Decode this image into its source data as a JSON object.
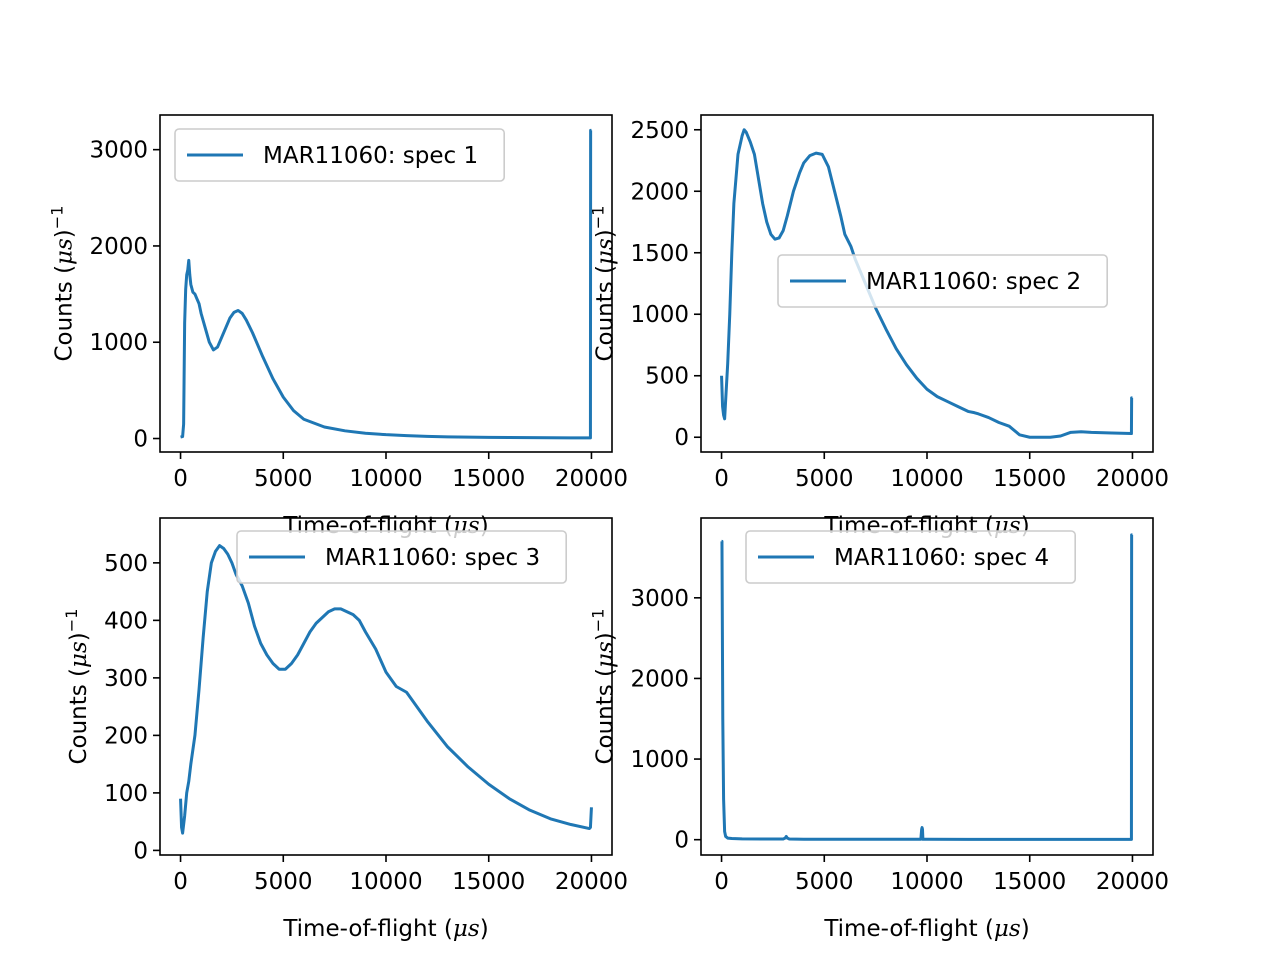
{
  "chart_data": [
    {
      "type": "line",
      "xlabel": "Time-of-flight ($\\mu s$)",
      "ylabel": "Counts ($\\mu s$)$^{-1}$",
      "xlim": [
        -1000,
        21000
      ],
      "ylim": [
        -140,
        3360
      ],
      "xticks": [
        0,
        5000,
        10000,
        15000,
        20000
      ],
      "xtick_labels": [
        "0",
        "5000",
        "10000",
        "15000",
        "20000"
      ],
      "yticks": [
        0,
        1000,
        2000,
        3000
      ],
      "ytick_labels": [
        "0",
        "1000",
        "2000",
        "3000"
      ],
      "legend": "upper left",
      "grid": false,
      "color": "#1f77b4",
      "series": [
        {
          "name": "MAR11060: spec 1",
          "x": [
            0,
            100,
            150,
            200,
            250,
            300,
            350,
            400,
            450,
            500,
            600,
            700,
            800,
            900,
            1000,
            1200,
            1400,
            1600,
            1800,
            2000,
            2200,
            2400,
            2600,
            2800,
            3000,
            3200,
            3500,
            4000,
            4500,
            5000,
            5500,
            6000,
            7000,
            8000,
            9000,
            10000,
            11000,
            12000,
            13000,
            14000,
            15000,
            16000,
            17000,
            18000,
            19000,
            19950,
            19960,
            20000
          ],
          "values": [
            15,
            20,
            150,
            1200,
            1550,
            1700,
            1750,
            1850,
            1700,
            1600,
            1520,
            1500,
            1450,
            1400,
            1300,
            1150,
            1000,
            920,
            950,
            1050,
            1150,
            1250,
            1310,
            1330,
            1300,
            1230,
            1100,
            850,
            620,
            430,
            290,
            200,
            120,
            80,
            55,
            40,
            30,
            22,
            17,
            14,
            12,
            10,
            9,
            8,
            7,
            7,
            3200,
            3200
          ]
        }
      ]
    },
    {
      "type": "line",
      "xlabel": "Time-of-flight ($\\mu s$)",
      "ylabel": "Counts ($\\mu s$)$^{-1}$",
      "xlim": [
        -1000,
        21000
      ],
      "ylim": [
        -120,
        2620
      ],
      "xticks": [
        0,
        5000,
        10000,
        15000,
        20000
      ],
      "xtick_labels": [
        "0",
        "5000",
        "10000",
        "15000",
        "20000"
      ],
      "yticks": [
        0,
        500,
        1000,
        1500,
        2000,
        2500
      ],
      "ytick_labels": [
        "0",
        "500",
        "1000",
        "1500",
        "2000",
        "2500"
      ],
      "legend": "center right",
      "grid": false,
      "color": "#1f77b4",
      "series": [
        {
          "name": "MAR11060: spec 2",
          "x": [
            0,
            50,
            100,
            150,
            200,
            300,
            400,
            500,
            600,
            800,
            1000,
            1100,
            1200,
            1400,
            1600,
            1800,
            2000,
            2200,
            2400,
            2600,
            2800,
            3000,
            3200,
            3500,
            3800,
            4000,
            4300,
            4600,
            4900,
            5200,
            5500,
            5800,
            6000,
            6300,
            6500,
            7000,
            7500,
            8000,
            8500,
            9000,
            9500,
            10000,
            10500,
            11000,
            11500,
            12000,
            12300,
            12500,
            13000,
            13500,
            14000,
            14500,
            15000,
            15500,
            16000,
            16500,
            17000,
            17500,
            18000,
            19000,
            19950,
            19960,
            20000
          ],
          "values": [
            500,
            250,
            180,
            150,
            300,
            600,
            1000,
            1500,
            1900,
            2300,
            2450,
            2500,
            2480,
            2400,
            2300,
            2100,
            1900,
            1750,
            1650,
            1610,
            1620,
            1680,
            1800,
            2000,
            2150,
            2230,
            2290,
            2310,
            2300,
            2200,
            2000,
            1800,
            1650,
            1550,
            1450,
            1250,
            1050,
            880,
            720,
            590,
            480,
            390,
            330,
            290,
            250,
            210,
            200,
            190,
            160,
            120,
            90,
            20,
            0,
            0,
            0,
            10,
            40,
            45,
            40,
            35,
            30,
            320,
            320
          ]
        }
      ]
    },
    {
      "type": "line",
      "xlabel": "Time-of-flight ($\\mu s$)",
      "ylabel": "Counts ($\\mu s$)$^{-1}$",
      "xlim": [
        -1000,
        21000
      ],
      "ylim": [
        -8,
        578
      ],
      "xticks": [
        0,
        5000,
        10000,
        15000,
        20000
      ],
      "xtick_labels": [
        "0",
        "5000",
        "10000",
        "15000",
        "20000"
      ],
      "yticks": [
        0,
        100,
        200,
        300,
        400,
        500
      ],
      "ytick_labels": [
        "0",
        "100",
        "200",
        "300",
        "400",
        "500"
      ],
      "legend": "upper right",
      "grid": false,
      "color": "#1f77b4",
      "series": [
        {
          "name": "MAR11060: spec 3",
          "x": [
            0,
            50,
            100,
            200,
            300,
            400,
            500,
            700,
            900,
            1100,
            1300,
            1500,
            1700,
            1900,
            2100,
            2300,
            2500,
            2700,
            3000,
            3300,
            3600,
            3900,
            4200,
            4500,
            4800,
            5100,
            5400,
            5700,
            6000,
            6300,
            6600,
            6900,
            7200,
            7500,
            7800,
            8100,
            8400,
            8700,
            9000,
            9500,
            10000,
            10500,
            11000,
            11500,
            12000,
            13000,
            14000,
            15000,
            16000,
            17000,
            18000,
            19000,
            19900,
            19950,
            20000
          ],
          "values": [
            90,
            40,
            30,
            60,
            100,
            120,
            150,
            200,
            280,
            370,
            450,
            500,
            520,
            530,
            525,
            515,
            500,
            480,
            460,
            430,
            390,
            360,
            340,
            325,
            315,
            315,
            325,
            340,
            360,
            380,
            395,
            405,
            415,
            420,
            420,
            415,
            410,
            400,
            380,
            350,
            310,
            285,
            275,
            250,
            225,
            180,
            145,
            115,
            90,
            70,
            55,
            45,
            38,
            40,
            75
          ]
        }
      ]
    },
    {
      "type": "line",
      "xlabel": "Time-of-flight ($\\mu s$)",
      "ylabel": "Counts ($\\mu s$)$^{-1}$",
      "xlim": [
        -1000,
        21000
      ],
      "ylim": [
        -190,
        3990
      ],
      "xticks": [
        0,
        5000,
        10000,
        15000,
        20000
      ],
      "xtick_labels": [
        "0",
        "5000",
        "10000",
        "15000",
        "20000"
      ],
      "yticks": [
        0,
        1000,
        2000,
        3000
      ],
      "ytick_labels": [
        "0",
        "1000",
        "2000",
        "3000"
      ],
      "legend": "upper center",
      "grid": false,
      "color": "#1f77b4",
      "series": [
        {
          "name": "MAR11060: spec 4",
          "x": [
            0,
            20,
            60,
            100,
            150,
            200,
            300,
            500,
            1000,
            2000,
            3000,
            3100,
            3150,
            3200,
            3300,
            4000,
            6000,
            8000,
            9700,
            9740,
            9760,
            9780,
            9800,
            9850,
            10000,
            12000,
            14000,
            16000,
            18000,
            19900,
            19950,
            19960,
            20000
          ],
          "values": [
            3700,
            3700,
            1500,
            500,
            100,
            40,
            20,
            15,
            10,
            8,
            8,
            20,
            40,
            20,
            8,
            6,
            5,
            5,
            5,
            130,
            150,
            130,
            5,
            5,
            5,
            4,
            4,
            4,
            4,
            4,
            4,
            3780,
            3780
          ]
        }
      ]
    }
  ]
}
